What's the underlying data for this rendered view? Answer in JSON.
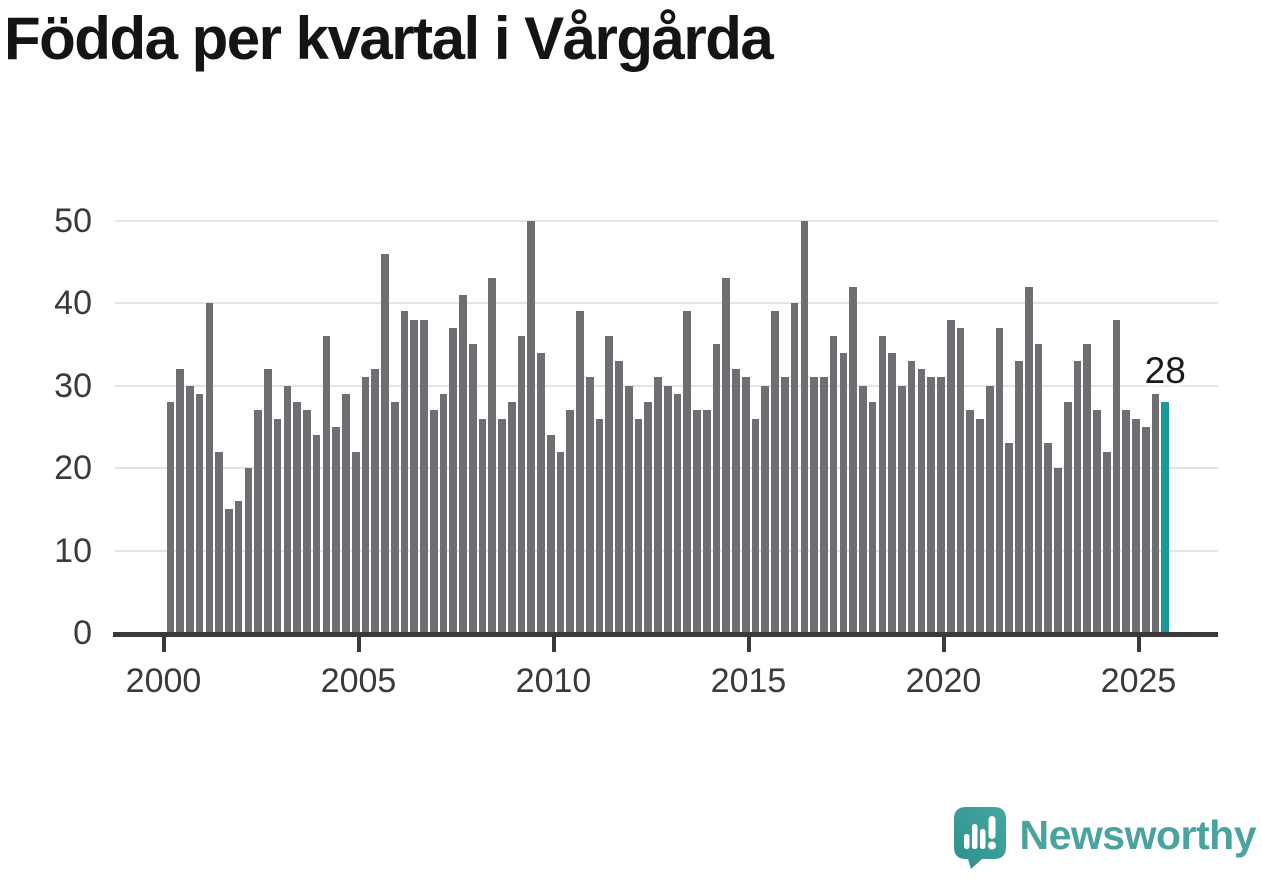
{
  "title": "Födda per kvartal i Vårgårda",
  "chart_data": {
    "type": "bar",
    "title": "Födda per kvartal i Vårgårda",
    "xlabel": "",
    "ylabel": "",
    "ylim": [
      0,
      50
    ],
    "grid": true,
    "y_ticks": [
      0,
      10,
      20,
      30,
      40,
      50
    ],
    "x_ticks": [
      "2000",
      "2005",
      "2010",
      "2015",
      "2020",
      "2025"
    ],
    "bar_color": "#6f6e73",
    "highlight_color": "#18999c",
    "highlighted_index": 102,
    "categories": [
      "2000-Q1",
      "2000-Q2",
      "2000-Q3",
      "2000-Q4",
      "2001-Q1",
      "2001-Q2",
      "2001-Q3",
      "2001-Q4",
      "2002-Q1",
      "2002-Q2",
      "2002-Q3",
      "2002-Q4",
      "2003-Q1",
      "2003-Q2",
      "2003-Q3",
      "2003-Q4",
      "2004-Q1",
      "2004-Q2",
      "2004-Q3",
      "2004-Q4",
      "2005-Q1",
      "2005-Q2",
      "2005-Q3",
      "2005-Q4",
      "2006-Q1",
      "2006-Q2",
      "2006-Q3",
      "2006-Q4",
      "2007-Q1",
      "2007-Q2",
      "2007-Q3",
      "2007-Q4",
      "2008-Q1",
      "2008-Q2",
      "2008-Q3",
      "2008-Q4",
      "2009-Q1",
      "2009-Q2",
      "2009-Q3",
      "2009-Q4",
      "2010-Q1",
      "2010-Q2",
      "2010-Q3",
      "2010-Q4",
      "2011-Q1",
      "2011-Q2",
      "2011-Q3",
      "2011-Q4",
      "2012-Q1",
      "2012-Q2",
      "2012-Q3",
      "2012-Q4",
      "2013-Q1",
      "2013-Q2",
      "2013-Q3",
      "2013-Q4",
      "2014-Q1",
      "2014-Q2",
      "2014-Q3",
      "2014-Q4",
      "2015-Q1",
      "2015-Q2",
      "2015-Q3",
      "2015-Q4",
      "2016-Q1",
      "2016-Q2",
      "2016-Q3",
      "2016-Q4",
      "2017-Q1",
      "2017-Q2",
      "2017-Q3",
      "2017-Q4",
      "2018-Q1",
      "2018-Q2",
      "2018-Q3",
      "2018-Q4",
      "2019-Q1",
      "2019-Q2",
      "2019-Q3",
      "2019-Q4",
      "2020-Q1",
      "2020-Q2",
      "2020-Q3",
      "2020-Q4",
      "2021-Q1",
      "2021-Q2",
      "2021-Q3",
      "2021-Q4",
      "2022-Q1",
      "2022-Q2",
      "2022-Q3",
      "2022-Q4",
      "2023-Q1",
      "2023-Q2",
      "2023-Q3",
      "2023-Q4",
      "2024-Q1",
      "2024-Q2",
      "2024-Q3",
      "2024-Q4",
      "2025-Q1",
      "2025-Q2",
      "2025-Q3"
    ],
    "values": [
      28,
      32,
      30,
      29,
      40,
      22,
      15,
      16,
      20,
      27,
      32,
      26,
      30,
      28,
      27,
      24,
      36,
      25,
      29,
      22,
      31,
      32,
      46,
      28,
      39,
      38,
      38,
      27,
      29,
      37,
      41,
      35,
      26,
      43,
      26,
      28,
      36,
      50,
      34,
      24,
      22,
      27,
      39,
      31,
      26,
      36,
      33,
      30,
      26,
      28,
      31,
      30,
      29,
      39,
      27,
      27,
      35,
      43,
      32,
      31,
      26,
      30,
      39,
      31,
      40,
      50,
      31,
      31,
      36,
      34,
      42,
      30,
      28,
      36,
      34,
      30,
      33,
      32,
      31,
      31,
      38,
      37,
      27,
      26,
      30,
      37,
      23,
      33,
      42,
      35,
      23,
      20,
      28,
      33,
      35,
      27,
      22,
      38,
      27,
      26,
      25,
      29,
      28
    ],
    "annotation_label": "28",
    "legend_position": "none"
  },
  "branding": {
    "name": "Newsworthy",
    "icon": "newsworthy-speech-bubble-chart-icon",
    "text_color": "#4aa39e",
    "icon_color": "#3ba19b",
    "icon_shade_color": "#2e8f8a"
  }
}
